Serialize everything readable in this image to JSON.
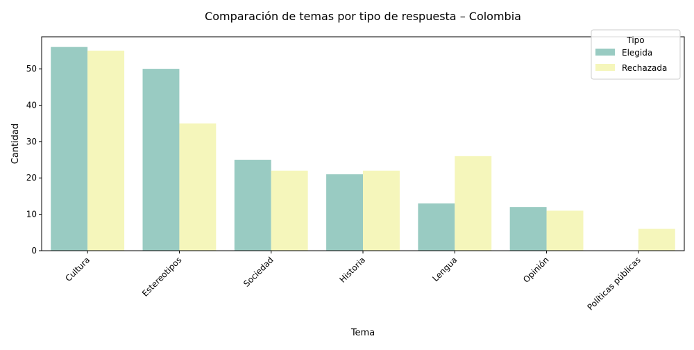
{
  "chart_data": {
    "type": "bar",
    "title": "Comparación de temas por tipo de respuesta – Colombia",
    "xlabel": "Tema",
    "ylabel": "Cantidad",
    "categories": [
      "Cultura",
      "Estereotipos",
      "Sociedad",
      "Historia",
      "Lengua",
      "Opinión",
      "Políticas públicas"
    ],
    "series": [
      {
        "name": "Elegida",
        "values": [
          56,
          50,
          25,
          21,
          13,
          12,
          0
        ],
        "color": "#99cbc2"
      },
      {
        "name": "Rechazada",
        "values": [
          55,
          35,
          22,
          22,
          26,
          11,
          6
        ],
        "color": "#f5f6bb"
      }
    ],
    "ylim": [
      0,
      58.8
    ],
    "yticks": [
      0,
      10,
      20,
      30,
      40,
      50
    ],
    "grid": false,
    "legend": {
      "title": "Tipo",
      "placement": "top-right"
    }
  }
}
